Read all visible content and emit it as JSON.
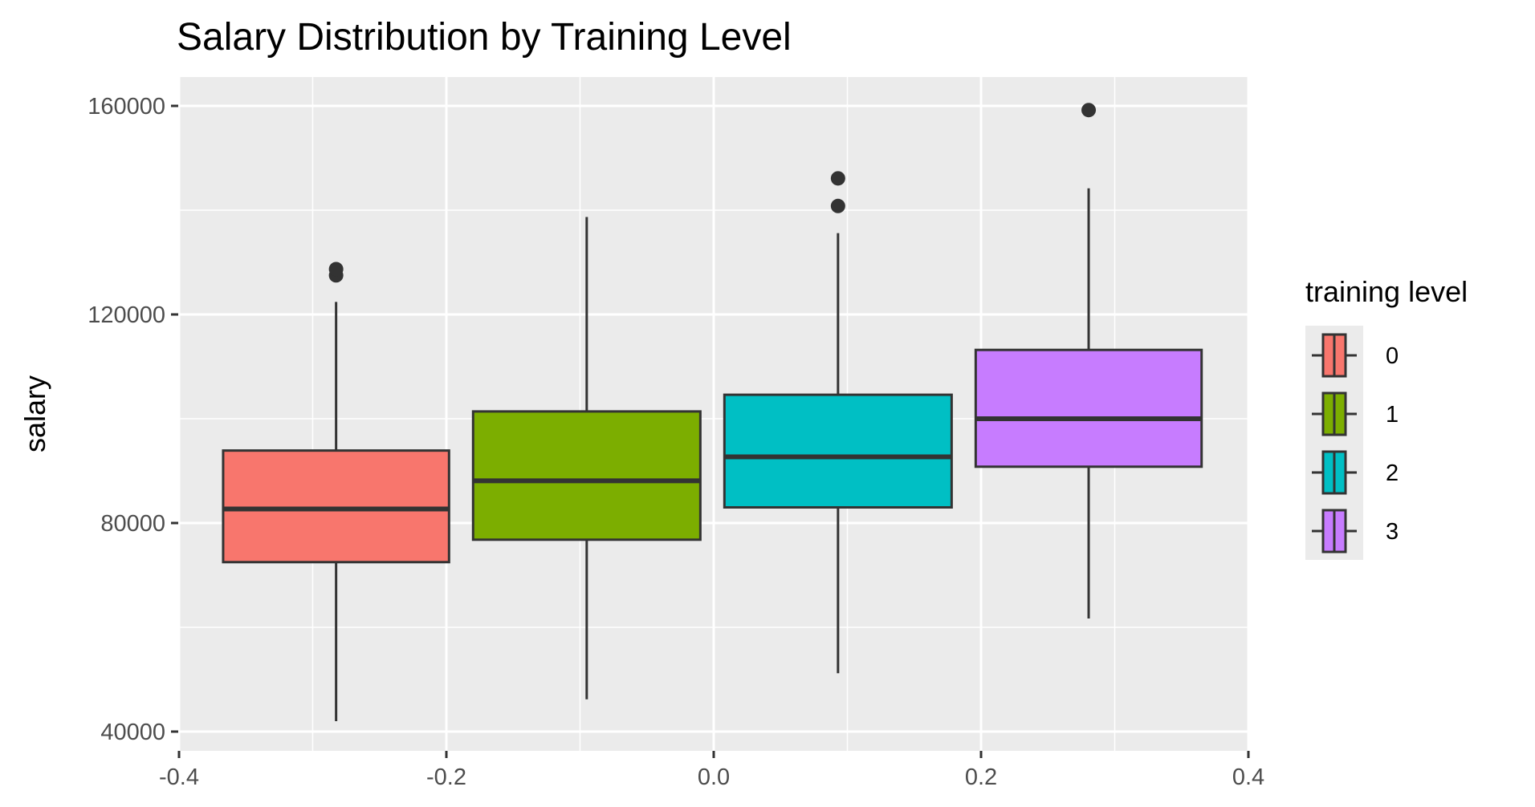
{
  "chart_data": {
    "type": "boxplot",
    "title": "Salary Distribution by Training Level",
    "xlabel": "",
    "ylabel": "salary",
    "xlim": [
      -0.4,
      0.4
    ],
    "ylim": [
      40000,
      160000
    ],
    "x_ticks": [
      -0.4,
      -0.2,
      0.0,
      0.2,
      0.4
    ],
    "x_tick_labels": [
      "-0.4",
      "-0.2",
      "0.0",
      "0.2",
      "0.4"
    ],
    "y_ticks": [
      40000,
      80000,
      120000,
      160000
    ],
    "y_tick_labels": [
      "40000",
      "80000",
      "120000",
      "160000"
    ],
    "grid": true,
    "legend": {
      "title": "training level",
      "position": "right"
    },
    "groups": [
      {
        "label": "0",
        "color": "#F8766D",
        "x_min": -0.367,
        "x_max": -0.198,
        "whisker_low": 42000,
        "q1": 72500,
        "median": 82700,
        "q3": 93900,
        "whisker_high": 122400,
        "outliers": [
          127500,
          128700
        ]
      },
      {
        "label": "1",
        "color": "#7CAE00",
        "x_min": -0.18,
        "x_max": -0.01,
        "whisker_low": 46200,
        "q1": 76800,
        "median": 88100,
        "q3": 101400,
        "whisker_high": 138700,
        "outliers": []
      },
      {
        "label": "2",
        "color": "#00BFC4",
        "x_min": 0.008,
        "x_max": 0.178,
        "whisker_low": 51200,
        "q1": 83000,
        "median": 92700,
        "q3": 104600,
        "whisker_high": 135600,
        "outliers": [
          140800,
          146100
        ]
      },
      {
        "label": "3",
        "color": "#C77CFF",
        "x_min": 0.196,
        "x_max": 0.365,
        "whisker_low": 61700,
        "q1": 90800,
        "median": 100000,
        "q3": 113200,
        "whisker_high": 144200,
        "outliers": [
          159200
        ]
      }
    ]
  }
}
